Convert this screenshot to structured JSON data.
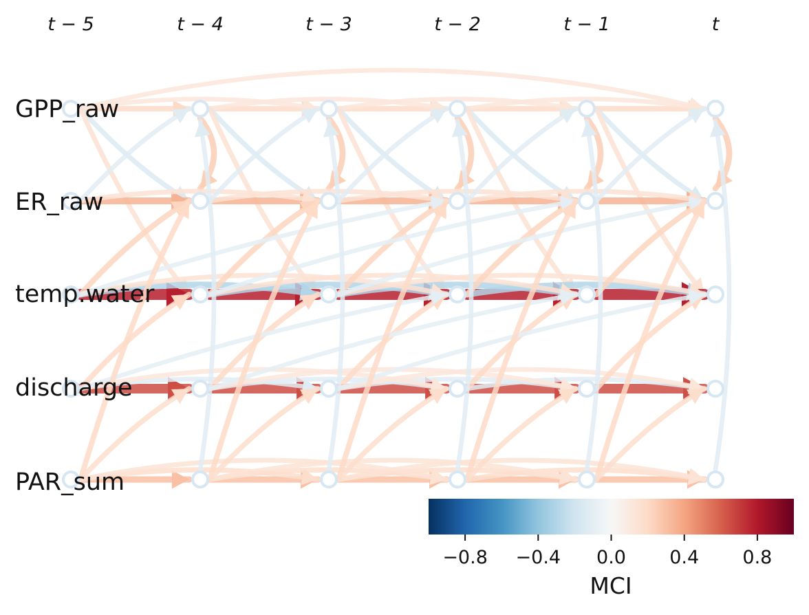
{
  "time_labels": [
    "t − 5",
    "t − 4",
    "t − 3",
    "t − 2",
    "t − 1",
    "t"
  ],
  "variables": [
    "GPP_raw",
    "ER_raw",
    "temp.water",
    "discharge",
    "PAR_sum"
  ],
  "colorbar": {
    "title": "MCI",
    "vmin": -1.0,
    "vmax": 1.0,
    "ticks": [
      "−0.8",
      "−0.4",
      "0.0",
      "0.4",
      "0.8"
    ],
    "tick_values": [
      -0.8,
      -0.4,
      0.0,
      0.4,
      0.8
    ],
    "colormap": "RdBu_r",
    "stops": [
      "#053061",
      "#2166ac",
      "#4393c3",
      "#92c5de",
      "#d1e5f0",
      "#f7f7f7",
      "#fddbc7",
      "#f4a582",
      "#d6604d",
      "#b2182b",
      "#67001f"
    ]
  },
  "links": [
    {
      "from": "GPP_raw",
      "to": "GPP_raw",
      "lag": 1,
      "mci": 0.2
    },
    {
      "from": "GPP_raw",
      "to": "GPP_raw",
      "lag": 2,
      "mci": 0.12
    },
    {
      "from": "GPP_raw",
      "to": "GPP_raw",
      "lag": 5,
      "mci": 0.12
    },
    {
      "from": "GPP_raw",
      "to": "ER_raw",
      "lag": 1,
      "mci": -0.15
    },
    {
      "from": "GPP_raw",
      "to": "ER_raw",
      "lag": 0,
      "mci": 0.25
    },
    {
      "from": "GPP_raw",
      "to": "temp.water",
      "lag": 1,
      "mci": 0.15
    },
    {
      "from": "ER_raw",
      "to": "ER_raw",
      "lag": 1,
      "mci": 0.35
    },
    {
      "from": "ER_raw",
      "to": "ER_raw",
      "lag": 2,
      "mci": 0.15
    },
    {
      "from": "ER_raw",
      "to": "GPP_raw",
      "lag": 1,
      "mci": -0.12
    },
    {
      "from": "temp.water",
      "to": "temp.water",
      "lag": 1,
      "mci": 0.78
    },
    {
      "from": "temp.water",
      "to": "temp.water",
      "lag": 2,
      "mci": -0.3
    },
    {
      "from": "temp.water",
      "to": "temp.water",
      "lag": 3,
      "mci": 0.15
    },
    {
      "from": "temp.water",
      "to": "ER_raw",
      "lag": 1,
      "mci": 0.22
    },
    {
      "from": "temp.water",
      "to": "ER_raw",
      "lag": 3,
      "mci": -0.1
    },
    {
      "from": "discharge",
      "to": "discharge",
      "lag": 1,
      "mci": 0.65
    },
    {
      "from": "discharge",
      "to": "discharge",
      "lag": 2,
      "mci": -0.12
    },
    {
      "from": "discharge",
      "to": "discharge",
      "lag": 3,
      "mci": 0.12
    },
    {
      "from": "discharge",
      "to": "temp.water",
      "lag": 1,
      "mci": 0.2
    },
    {
      "from": "discharge",
      "to": "temp.water",
      "lag": 3,
      "mci": -0.1
    },
    {
      "from": "PAR_sum",
      "to": "PAR_sum",
      "lag": 1,
      "mci": 0.3
    },
    {
      "from": "PAR_sum",
      "to": "PAR_sum",
      "lag": 2,
      "mci": 0.18
    },
    {
      "from": "PAR_sum",
      "to": "PAR_sum",
      "lag": 3,
      "mci": 0.14
    },
    {
      "from": "PAR_sum",
      "to": "ER_raw",
      "lag": 1,
      "mci": 0.2
    },
    {
      "from": "PAR_sum",
      "to": "GPP_raw",
      "lag": 0,
      "mci": -0.12
    },
    {
      "from": "PAR_sum",
      "to": "discharge",
      "lag": 1,
      "mci": 0.18
    }
  ]
}
